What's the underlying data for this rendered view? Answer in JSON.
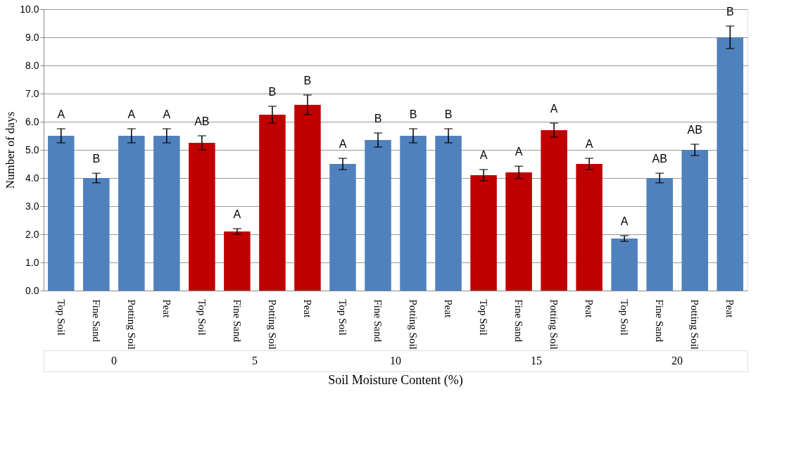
{
  "chart_data": {
    "type": "bar",
    "ylabel": "Number of days",
    "xlabel": "Soil Moisture Content (%)",
    "categories": [
      "Top Soil",
      "Fine Sand",
      "Potting Soil",
      "Peat",
      "Top Soil",
      "Fine Sand",
      "Potting Soil",
      "Peat",
      "Top Soil",
      "Fine Sand",
      "Potting Soil",
      "Peat",
      "Top Soil",
      "Fine Sand",
      "Potting Soil",
      "Peat",
      "Top Soil",
      "Fine Sand",
      "Potting Soil",
      "Peat"
    ],
    "values": [
      5.5,
      4.0,
      5.5,
      5.5,
      5.25,
      2.1,
      6.25,
      6.6,
      4.5,
      5.35,
      5.5,
      5.5,
      4.1,
      4.2,
      5.7,
      4.5,
      1.85,
      4.0,
      5.0,
      9.0
    ],
    "errors": [
      0.25,
      0.17,
      0.25,
      0.25,
      0.25,
      0.1,
      0.3,
      0.35,
      0.2,
      0.25,
      0.25,
      0.25,
      0.2,
      0.22,
      0.25,
      0.2,
      0.1,
      0.17,
      0.2,
      0.4
    ],
    "colors": [
      "#4f81bd",
      "#4f81bd",
      "#4f81bd",
      "#4f81bd",
      "#c00000",
      "#c00000",
      "#c00000",
      "#c00000",
      "#4f81bd",
      "#4f81bd",
      "#4f81bd",
      "#4f81bd",
      "#c00000",
      "#c00000",
      "#c00000",
      "#c00000",
      "#4f81bd",
      "#4f81bd",
      "#4f81bd",
      "#4f81bd"
    ],
    "value_labels": [
      "A",
      "B",
      "A",
      "A",
      "AB",
      "A",
      "B",
      "B",
      "A",
      "B",
      "B",
      "B",
      "A",
      "A",
      "A",
      "A",
      "A",
      "AB",
      "AB",
      "B"
    ],
    "annotations": [
      "0",
      "5",
      "10",
      "15",
      "20"
    ],
    "ylim": [
      0,
      10
    ],
    "yticks": [
      {
        "value": 0,
        "label": "0.0"
      },
      {
        "value": 1,
        "label": "1.0"
      },
      {
        "value": 2,
        "label": "2.0"
      },
      {
        "value": 3,
        "label": "3.0"
      },
      {
        "value": 4,
        "label": "4.0"
      },
      {
        "value": 5,
        "label": "5.0"
      },
      {
        "value": 6,
        "label": "6.0"
      },
      {
        "value": 7,
        "label": "7.0"
      },
      {
        "value": 8,
        "label": "8.0"
      },
      {
        "value": 9,
        "label": "9.0"
      },
      {
        "value": 10,
        "label": "10.0"
      }
    ],
    "grid": "y"
  }
}
